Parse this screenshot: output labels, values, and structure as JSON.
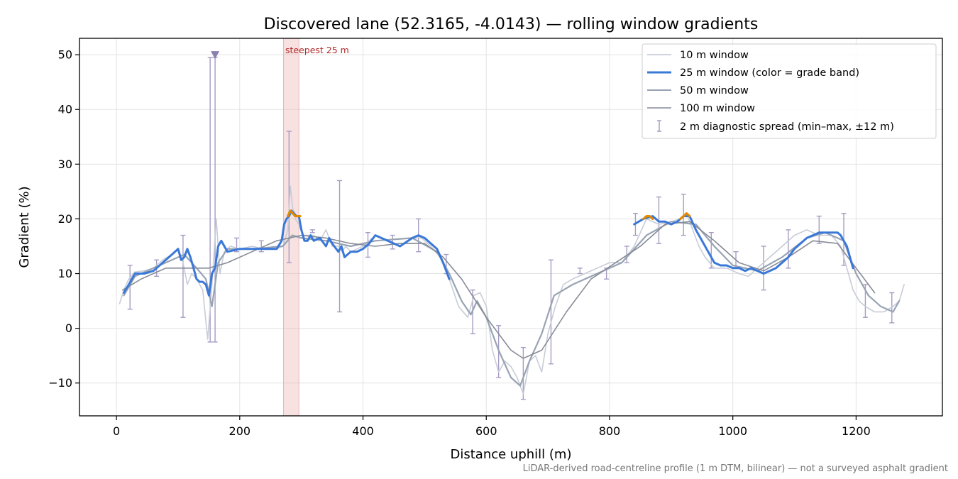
{
  "chart_data": {
    "type": "line",
    "title": "Discovered lane (52.3165, -4.0143) — rolling window gradients",
    "xlabel": "Distance uphill (m)",
    "ylabel": "Gradient (%)",
    "xlim": [
      -60,
      1340
    ],
    "ylim": [
      -16,
      53
    ],
    "xticks": [
      0,
      200,
      400,
      600,
      800,
      1000,
      1200
    ],
    "xtick_labels": [
      "0",
      "200",
      "400",
      "600",
      "800",
      "1000",
      "1200"
    ],
    "yticks": [
      -10,
      0,
      10,
      20,
      30,
      40,
      50
    ],
    "ytick_labels": [
      "−10",
      "0",
      "10",
      "20",
      "30",
      "40",
      "50"
    ],
    "grid": true,
    "legend_position": "top-right",
    "colors": {
      "w10": "#c7ccd6",
      "w25": "#3a78d8",
      "w25_steep": "#e08a00",
      "w50": "#98a3b3",
      "w100": "#878b96",
      "spread": "#a69cc4",
      "spread_marker": "#8a7fae",
      "steep_band": "#e8a8a8",
      "steep_label": "#b22a2a"
    },
    "series": [
      {
        "name": "10 m window",
        "x": [
          5,
          12,
          20,
          30,
          45,
          60,
          75,
          90,
          100,
          108,
          115,
          122,
          130,
          140,
          148,
          155,
          162,
          168,
          175,
          185,
          200,
          220,
          240,
          260,
          270,
          278,
          282,
          286,
          290,
          296,
          302,
          310,
          320,
          330,
          340,
          350,
          360,
          366,
          372,
          380,
          390,
          400,
          410,
          420,
          440,
          460,
          480,
          495,
          510,
          525,
          540,
          555,
          570,
          580,
          590,
          600,
          610,
          620,
          630,
          640,
          650,
          660,
          670,
          680,
          690,
          700,
          712,
          725,
          740,
          760,
          780,
          800,
          820,
          840,
          860,
          880,
          900,
          915,
          925,
          935,
          945,
          955,
          970,
          990,
          1010,
          1025,
          1040,
          1060,
          1080,
          1100,
          1120,
          1140,
          1160,
          1175,
          1185,
          1195,
          1205,
          1215,
          1230,
          1245,
          1260,
          1270,
          1278
        ],
        "y": [
          4.5,
          7,
          9,
          10.3,
          10.5,
          11,
          12.5,
          13.5,
          14.5,
          12,
          8,
          10,
          9,
          7,
          -2,
          8,
          20,
          10,
          14,
          15,
          14.5,
          15,
          14.5,
          14.5,
          15,
          18,
          26,
          22,
          20,
          19,
          17,
          17,
          17,
          16,
          18,
          15,
          15,
          14,
          15,
          14,
          14.5,
          15,
          16,
          17,
          16,
          15,
          16.5,
          16.5,
          15,
          13,
          9,
          4,
          2,
          6,
          6.5,
          4,
          -4,
          -8,
          -6,
          -7,
          -9,
          -12,
          -6,
          -5,
          -8,
          -1,
          4,
          8,
          9,
          10,
          11,
          12,
          12,
          15,
          20,
          19,
          19.5,
          20,
          21,
          18,
          15,
          13,
          11,
          11,
          10,
          9.5,
          11,
          13,
          15,
          17,
          18,
          17,
          17,
          15,
          11,
          7,
          5,
          4,
          3,
          3,
          4,
          5,
          8
        ]
      },
      {
        "name": "25 m window (color = grade band)",
        "x": [
          12,
          20,
          30,
          45,
          60,
          75,
          90,
          100,
          105,
          110,
          115,
          120,
          125,
          130,
          135,
          140,
          145,
          150,
          155,
          160,
          165,
          170,
          180,
          200,
          220,
          240,
          260,
          268,
          272,
          276,
          280,
          284,
          288,
          292,
          296,
          300,
          305,
          310,
          315,
          320,
          330,
          340,
          345,
          350,
          360,
          365,
          370,
          380,
          390,
          400,
          410,
          420,
          440,
          460,
          480,
          490,
          500,
          510,
          520,
          530,
          540
        ],
        "y": [
          6.5,
          8,
          10,
          10,
          10.5,
          12,
          13.5,
          14.5,
          12.5,
          13,
          14.5,
          13,
          11,
          9,
          8.5,
          8.5,
          8,
          6,
          10,
          11,
          15,
          16,
          14,
          14.5,
          14.5,
          14.5,
          14.5,
          16,
          19,
          20,
          20.5,
          21.5,
          21,
          20.5,
          20.5,
          18,
          16,
          16,
          17,
          16,
          16.5,
          15,
          16.5,
          15.5,
          14,
          15,
          13,
          14,
          14,
          14.5,
          15.5,
          17,
          16,
          15,
          16.5,
          17,
          16.5,
          15.5,
          14.5,
          12,
          9
        ]
      },
      {
        "name": "25 m window (steep segments)",
        "x": [
          278,
          282,
          286,
          290,
          294,
          298
        ],
        "y": [
          20.5,
          21.5,
          21,
          20.5,
          20.5,
          20.5
        ]
      },
      {
        "name": "25 m window (continued)",
        "x": [
          840,
          855,
          870,
          880,
          890,
          900,
          910,
          920,
          930,
          940,
          950,
          960,
          970,
          980,
          990,
          1000,
          1010,
          1020,
          1030,
          1040,
          1050,
          1060,
          1070,
          1080,
          1090,
          1100,
          1110,
          1120,
          1130,
          1140,
          1150,
          1160,
          1170,
          1175,
          1180,
          1185,
          1190,
          1195
        ],
        "y": [
          19,
          20,
          20.5,
          19.5,
          19.5,
          19,
          19.5,
          20.5,
          20.5,
          18,
          16,
          14,
          12,
          11.5,
          11.5,
          11,
          11,
          10.5,
          11,
          10.5,
          10,
          10.5,
          11,
          12,
          13,
          14.5,
          15.5,
          16.5,
          17,
          17.5,
          17.5,
          17.5,
          17.5,
          17,
          16,
          15,
          13,
          11
        ]
      },
      {
        "name": "25 m window (steep segments)",
        "x": [
          855,
          860,
          865,
          870
        ],
        "y": [
          20,
          20.5,
          20.5,
          20
        ]
      },
      {
        "name": "25 m window (steep segments)",
        "x": [
          915,
          920,
          925,
          930
        ],
        "y": [
          20,
          20.5,
          21,
          20.5
        ]
      },
      {
        "name": "50 m window",
        "x": [
          12,
          30,
          60,
          90,
          110,
          130,
          145,
          155,
          165,
          180,
          220,
          270,
          285,
          300,
          340,
          380,
          420,
          480,
          520,
          540,
          560,
          575,
          585,
          600,
          620,
          640,
          655,
          670,
          690,
          710,
          740,
          780,
          820,
          860,
          900,
          940,
          970,
          1000,
          1040,
          1080,
          1120,
          1150,
          1180,
          1200,
          1220,
          1240,
          1260,
          1270
        ],
        "y": [
          6,
          9.5,
          11,
          12.5,
          13.5,
          11,
          9,
          4,
          12,
          14.5,
          14.5,
          15,
          17,
          16.5,
          16,
          15,
          16,
          16.5,
          14,
          10,
          5,
          2.5,
          5,
          2,
          -4,
          -9,
          -10.5,
          -6,
          -1,
          6,
          8,
          10,
          12,
          17,
          19.5,
          19,
          15,
          11.5,
          10.5,
          13,
          16.5,
          17.5,
          16,
          10,
          6,
          4,
          3,
          5
        ]
      },
      {
        "name": "100 m window",
        "x": [
          10,
          40,
          80,
          110,
          150,
          180,
          220,
          260,
          300,
          340,
          380,
          420,
          460,
          500,
          530,
          560,
          600,
          640,
          660,
          690,
          730,
          770,
          810,
          850,
          890,
          930,
          970,
          1010,
          1050,
          1090,
          1130,
          1170,
          1200,
          1230
        ],
        "y": [
          7,
          9,
          11,
          11,
          11,
          12,
          14,
          16,
          17,
          16.5,
          15.5,
          15,
          15.5,
          15.5,
          13,
          9,
          2,
          -4,
          -5.5,
          -4,
          3,
          9,
          12,
          15,
          19,
          19.5,
          16,
          12,
          10.5,
          13,
          16,
          15.5,
          11,
          6.5
        ]
      }
    ],
    "error_bars": {
      "name": "2 m diagnostic spread (min–max, ±12 m)",
      "x": [
        22,
        65,
        108,
        152,
        160,
        195,
        235,
        280,
        318,
        362,
        408,
        448,
        490,
        535,
        578,
        620,
        660,
        705,
        752,
        795,
        828,
        842,
        880,
        920,
        965,
        1005,
        1050,
        1090,
        1140,
        1180,
        1215,
        1258
      ],
      "lo": [
        3.5,
        9.5,
        2,
        -2.5,
        -2.5,
        14,
        14,
        12,
        17.5,
        3,
        13,
        14.5,
        14,
        10,
        -1,
        -9,
        -13,
        -6.5,
        10,
        9,
        12,
        17,
        15.5,
        17,
        11,
        11,
        7,
        11,
        15.5,
        11.5,
        2,
        1
      ],
      "hi": [
        11.5,
        12.5,
        17,
        49.5,
        49.5,
        16.5,
        16,
        36,
        18,
        27,
        17.5,
        17,
        20,
        13.5,
        7,
        0.5,
        -3.5,
        12.5,
        11,
        11,
        15,
        21,
        24,
        24.5,
        17.5,
        14,
        15,
        18,
        20.5,
        21,
        8,
        6.5
      ],
      "clipped_marker_x": 160,
      "clipped_marker_y": 50
    },
    "highlight": {
      "label": "steepest 25 m",
      "x_start": 271,
      "x_end": 296
    },
    "legend": [
      "10 m window",
      "25 m window (color = grade band)",
      "50 m window",
      "100 m window",
      "2 m diagnostic spread (min–max, ±12 m)"
    ],
    "footnote": "LiDAR-derived road-centreline profile (1 m DTM, bilinear) — not a surveyed asphalt gradient"
  }
}
